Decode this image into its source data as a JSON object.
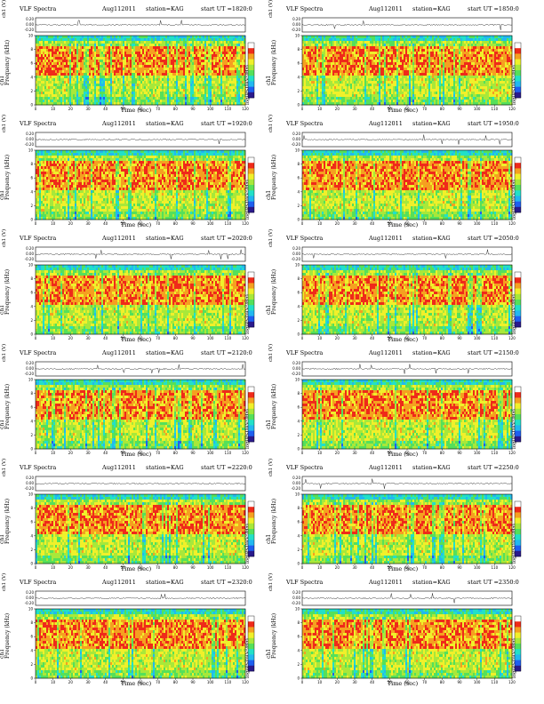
{
  "chart_data": [
    {
      "type": "heatmap",
      "title": "VLF Spectra",
      "date": "Aug112011",
      "station": "station=KAG",
      "start_ut": "start  UT  =1820:0",
      "xlabel": "Time  (sec)",
      "xlim": [
        0,
        120
      ],
      "xticks": [
        "0",
        "10",
        "20",
        "30",
        "40",
        "50",
        "60",
        "70",
        "80",
        "90",
        "100",
        "110",
        "120"
      ],
      "ylabel_wave": "ch1 (V)",
      "wave_ticks": [
        "0.20",
        "0.00",
        "-0.20"
      ],
      "ylabel_spec": "Frequency  (kHz)",
      "ylabel_spec_ch": "ch1",
      "ylim": [
        0,
        10
      ],
      "yticks": [
        "10",
        "8",
        "6",
        "4",
        "2",
        "0"
      ],
      "colorbar_label": "log(PSD)(V²/Hz)"
    },
    {
      "type": "heatmap",
      "title": "VLF Spectra",
      "date": "Aug112011",
      "station": "station=KAG",
      "start_ut": "start  UT  =1850:0",
      "xlabel": "Time  (sec)",
      "xlim": [
        0,
        120
      ],
      "xticks": [
        "0",
        "10",
        "20",
        "30",
        "40",
        "50",
        "60",
        "70",
        "80",
        "90",
        "100",
        "110",
        "120"
      ],
      "ylabel_wave": "ch1 (V)",
      "wave_ticks": [
        "0.20",
        "0.00",
        "-0.20"
      ],
      "ylabel_spec": "Frequency  (kHz)",
      "ylabel_spec_ch": "ch1",
      "ylim": [
        0,
        10
      ],
      "yticks": [
        "10",
        "8",
        "6",
        "4",
        "2",
        "0"
      ],
      "colorbar_label": "log(PSD)(V²/Hz)"
    },
    {
      "type": "heatmap",
      "title": "VLF Spectra",
      "date": "Aug112011",
      "station": "station=KAG",
      "start_ut": "start  UT  =1920:0",
      "xlabel": "Time  (sec)",
      "xlim": [
        0,
        120
      ],
      "xticks": [
        "0",
        "10",
        "20",
        "30",
        "40",
        "50",
        "60",
        "70",
        "80",
        "90",
        "100",
        "110",
        "120"
      ],
      "ylabel_wave": "ch1 (V)",
      "wave_ticks": [
        "0.20",
        "0.00",
        "-0.20"
      ],
      "ylabel_spec": "Frequency  (kHz)",
      "ylabel_spec_ch": "ch1",
      "ylim": [
        0,
        10
      ],
      "yticks": [
        "10",
        "8",
        "6",
        "4",
        "2",
        "0"
      ],
      "colorbar_label": "log(PSD)(V²/Hz)"
    },
    {
      "type": "heatmap",
      "title": "VLF Spectra",
      "date": "Aug112011",
      "station": "station=KAG",
      "start_ut": "start  UT  =1950:0",
      "xlabel": "Time  (sec)",
      "xlim": [
        0,
        120
      ],
      "xticks": [
        "0",
        "10",
        "20",
        "30",
        "40",
        "50",
        "60",
        "70",
        "80",
        "90",
        "100",
        "110",
        "120"
      ],
      "ylabel_wave": "ch1 (V)",
      "wave_ticks": [
        "0.20",
        "0.00",
        "-0.20"
      ],
      "ylabel_spec": "Frequency  (kHz)",
      "ylabel_spec_ch": "ch1",
      "ylim": [
        0,
        10
      ],
      "yticks": [
        "10",
        "8",
        "6",
        "4",
        "2",
        "0"
      ],
      "colorbar_label": "log(PSD)(V²/Hz)"
    },
    {
      "type": "heatmap",
      "title": "VLF Spectra",
      "date": "Aug112011",
      "station": "station=KAG",
      "start_ut": "start  UT  =2020:0",
      "xlabel": "Time  (sec)",
      "xlim": [
        0,
        120
      ],
      "xticks": [
        "0",
        "10",
        "20",
        "30",
        "40",
        "50",
        "60",
        "70",
        "80",
        "90",
        "100",
        "110",
        "120"
      ],
      "ylabel_wave": "ch1 (V)",
      "wave_ticks": [
        "0.20",
        "0.00",
        "-0.20"
      ],
      "ylabel_spec": "Frequency  (kHz)",
      "ylabel_spec_ch": "ch1",
      "ylim": [
        0,
        10
      ],
      "yticks": [
        "10",
        "8",
        "6",
        "4",
        "2",
        "0"
      ],
      "colorbar_label": "log(PSD)(V²/Hz)"
    },
    {
      "type": "heatmap",
      "title": "VLF Spectra",
      "date": "Aug112011",
      "station": "station=KAG",
      "start_ut": "start  UT  =2050:0",
      "xlabel": "Time  (sec)",
      "xlim": [
        0,
        120
      ],
      "xticks": [
        "0",
        "10",
        "20",
        "30",
        "40",
        "50",
        "60",
        "70",
        "80",
        "90",
        "100",
        "110",
        "120"
      ],
      "ylabel_wave": "ch1 (V)",
      "wave_ticks": [
        "0.20",
        "0.00",
        "-0.20"
      ],
      "ylabel_spec": "Frequency  (kHz)",
      "ylabel_spec_ch": "ch1",
      "ylim": [
        0,
        10
      ],
      "yticks": [
        "10",
        "8",
        "6",
        "4",
        "2",
        "0"
      ],
      "colorbar_label": "log(PSD)(V²/Hz)"
    },
    {
      "type": "heatmap",
      "title": "VLF Spectra",
      "date": "Aug112011",
      "station": "station=KAG",
      "start_ut": "start  UT  =2120:0",
      "xlabel": "Time  (sec)",
      "xlim": [
        0,
        120
      ],
      "xticks": [
        "0",
        "10",
        "20",
        "30",
        "40",
        "50",
        "60",
        "70",
        "80",
        "90",
        "100",
        "110",
        "120"
      ],
      "ylabel_wave": "ch1 (V)",
      "wave_ticks": [
        "0.20",
        "0.00",
        "-0.20"
      ],
      "ylabel_spec": "Frequency  (kHz)",
      "ylabel_spec_ch": "ch1",
      "ylim": [
        0,
        10
      ],
      "yticks": [
        "10",
        "8",
        "6",
        "4",
        "2",
        "0"
      ],
      "colorbar_label": "log(PSD)(V²/Hz)"
    },
    {
      "type": "heatmap",
      "title": "VLF Spectra",
      "date": "Aug112011",
      "station": "station=KAG",
      "start_ut": "start  UT  =2150:0",
      "xlabel": "Time  (sec)",
      "xlim": [
        0,
        120
      ],
      "xticks": [
        "0",
        "10",
        "20",
        "30",
        "40",
        "50",
        "60",
        "70",
        "80",
        "90",
        "100",
        "110",
        "120"
      ],
      "ylabel_wave": "ch1 (V)",
      "wave_ticks": [
        "0.20",
        "0.00",
        "-0.20"
      ],
      "ylabel_spec": "Frequency  (kHz)",
      "ylabel_spec_ch": "ch1",
      "ylim": [
        0,
        10
      ],
      "yticks": [
        "10",
        "8",
        "6",
        "4",
        "2",
        "0"
      ],
      "colorbar_label": "log(PSD)(V²/Hz)"
    },
    {
      "type": "heatmap",
      "title": "VLF Spectra",
      "date": "Aug112011",
      "station": "station=KAG",
      "start_ut": "start  UT  =2220:0",
      "xlabel": "Time  (sec)",
      "xlim": [
        0,
        120
      ],
      "xticks": [
        "0",
        "10",
        "20",
        "30",
        "40",
        "50",
        "60",
        "70",
        "80",
        "90",
        "100",
        "110",
        "120"
      ],
      "ylabel_wave": "ch1 (V)",
      "wave_ticks": [
        "0.20",
        "0.00",
        "-0.20"
      ],
      "ylabel_spec": "Frequency  (kHz)",
      "ylabel_spec_ch": "ch1",
      "ylim": [
        0,
        10
      ],
      "yticks": [
        "10",
        "8",
        "6",
        "4",
        "2",
        "0"
      ],
      "colorbar_label": "log(PSD)(V²/Hz)"
    },
    {
      "type": "heatmap",
      "title": "VLF Spectra",
      "date": "Aug112011",
      "station": "station=KAG",
      "start_ut": "start  UT  =2250:0",
      "xlabel": "Time  (sec)",
      "xlim": [
        0,
        120
      ],
      "xticks": [
        "0",
        "10",
        "20",
        "30",
        "40",
        "50",
        "60",
        "70",
        "80",
        "90",
        "100",
        "110",
        "120"
      ],
      "ylabel_wave": "ch1 (V)",
      "wave_ticks": [
        "0.20",
        "0.00",
        "-0.20"
      ],
      "ylabel_spec": "Frequency  (kHz)",
      "ylabel_spec_ch": "ch1",
      "ylim": [
        0,
        10
      ],
      "yticks": [
        "10",
        "8",
        "6",
        "4",
        "2",
        "0"
      ],
      "colorbar_label": "log(PSD)(V²/Hz)"
    },
    {
      "type": "heatmap",
      "title": "VLF Spectra",
      "date": "Aug112011",
      "station": "station=KAG",
      "start_ut": "start  UT  =2320:0",
      "xlabel": "Time  (sec)",
      "xlim": [
        0,
        120
      ],
      "xticks": [
        "0",
        "10",
        "20",
        "30",
        "40",
        "50",
        "60",
        "70",
        "80",
        "90",
        "100",
        "110",
        "120"
      ],
      "ylabel_wave": "ch1 (V)",
      "wave_ticks": [
        "0.20",
        "0.00",
        "-0.20"
      ],
      "ylabel_spec": "Frequency  (kHz)",
      "ylabel_spec_ch": "ch1",
      "ylim": [
        0,
        10
      ],
      "yticks": [
        "10",
        "8",
        "6",
        "4",
        "2",
        "0"
      ],
      "colorbar_label": "log(PSD)(V²/Hz)"
    },
    {
      "type": "heatmap",
      "title": "VLF Spectra",
      "date": "Aug112011",
      "station": "station=KAG",
      "start_ut": "start  UT  =2350:0",
      "xlabel": "Time  (sec)",
      "xlim": [
        0,
        120
      ],
      "xticks": [
        "0",
        "10",
        "20",
        "30",
        "40",
        "50",
        "60",
        "70",
        "80",
        "90",
        "100",
        "110",
        "120"
      ],
      "ylabel_wave": "ch1 (V)",
      "wave_ticks": [
        "0.20",
        "0.00",
        "-0.20"
      ],
      "ylabel_spec": "Frequency  (kHz)",
      "ylabel_spec_ch": "ch1",
      "ylim": [
        0,
        10
      ],
      "yticks": [
        "10",
        "8",
        "6",
        "4",
        "2",
        "0"
      ],
      "colorbar_label": "log(PSD)(V²/Hz)"
    }
  ],
  "colormap": [
    "#2a1a8c",
    "#1f5ff0",
    "#22b8f0",
    "#22e0c8",
    "#55e05a",
    "#a8e83a",
    "#f0f02a",
    "#f5a020",
    "#ef2a1a",
    "#ffffff"
  ]
}
